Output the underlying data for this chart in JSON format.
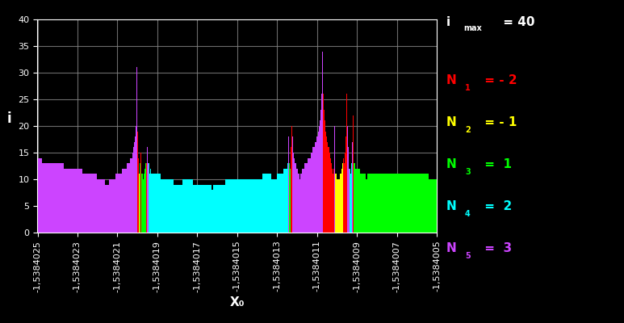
{
  "x_start": -1.5384025,
  "x_end": -1.5384005,
  "n_points": 2000,
  "y_max": 40,
  "background_color": "#000000",
  "grid_color": "#888888",
  "axis_color": "#ffffff",
  "tick_color": "#ffffff",
  "roots": [
    -2,
    -1,
    1,
    2,
    3
  ],
  "root_color_map": {
    "-2": "#ff0000",
    "-1": "#ffff00",
    "1": "#00ff00",
    "2": "#00ffff",
    "3": "#cc44ff"
  },
  "root_label_colors": [
    "#ff0000",
    "#ffff00",
    "#00ff00",
    "#00ffff",
    "#cc44ff"
  ],
  "root_subscripts": [
    "1",
    "2",
    "3",
    "4",
    "5"
  ],
  "root_values": [
    " - 2",
    " - 1",
    "  1",
    "  2",
    "  3"
  ],
  "imax": 40,
  "yticks": [
    0,
    5,
    10,
    15,
    20,
    25,
    30,
    35,
    40
  ],
  "xticks": [
    -1.5384025,
    -1.5384023,
    -1.5384021,
    -1.5384019,
    -1.5384017,
    -1.5384015,
    -1.5384013,
    -1.5384011,
    -1.5384009,
    -1.5384007,
    -1.5384005
  ]
}
